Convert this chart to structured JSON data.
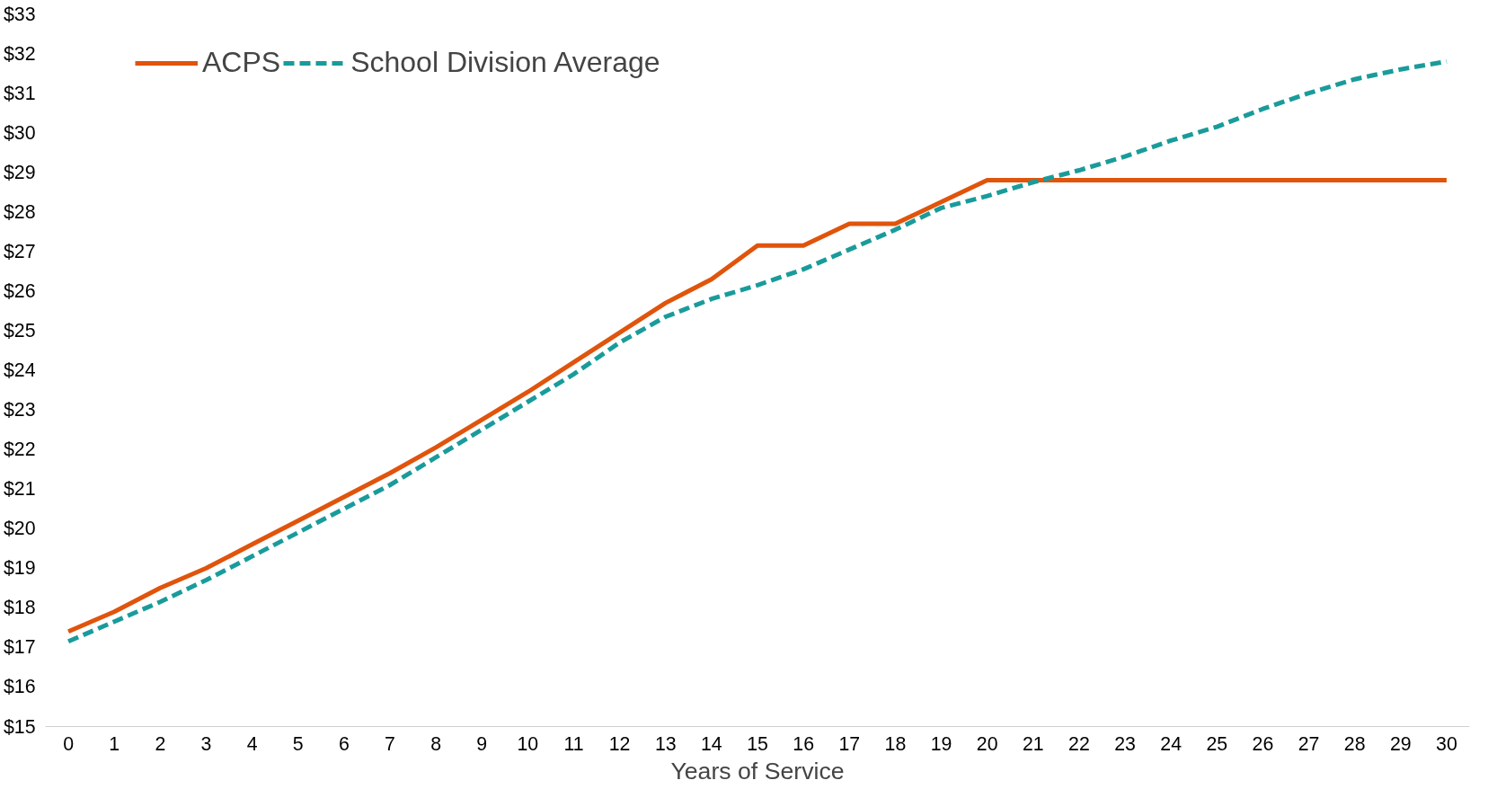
{
  "chart_data": {
    "type": "line",
    "xlabel": "Years of Service",
    "x": [
      0,
      1,
      2,
      3,
      4,
      5,
      6,
      7,
      8,
      9,
      10,
      11,
      12,
      13,
      14,
      15,
      16,
      17,
      18,
      19,
      20,
      21,
      22,
      23,
      24,
      25,
      26,
      27,
      28,
      29,
      30
    ],
    "xlim": [
      -0.5,
      30.5
    ],
    "xticks": [
      0,
      1,
      2,
      3,
      4,
      5,
      6,
      7,
      8,
      9,
      10,
      11,
      12,
      13,
      14,
      15,
      16,
      17,
      18,
      19,
      20,
      21,
      22,
      23,
      24,
      25,
      26,
      27,
      28,
      29,
      30
    ],
    "ylim": [
      15,
      33
    ],
    "yticks": [
      {
        "value": 15,
        "label": "$15"
      },
      {
        "value": 16,
        "label": "$16"
      },
      {
        "value": 17,
        "label": "$17"
      },
      {
        "value": 18,
        "label": "$18"
      },
      {
        "value": 19,
        "label": "$19"
      },
      {
        "value": 20,
        "label": "$20"
      },
      {
        "value": 21,
        "label": "$21"
      },
      {
        "value": 22,
        "label": "$22"
      },
      {
        "value": 23,
        "label": "$23"
      },
      {
        "value": 24,
        "label": "$24"
      },
      {
        "value": 25,
        "label": "$25"
      },
      {
        "value": 26,
        "label": "$26"
      },
      {
        "value": 27,
        "label": "$27"
      },
      {
        "value": 28,
        "label": "$28"
      },
      {
        "value": 29,
        "label": "$29"
      },
      {
        "value": 30,
        "label": "$30"
      },
      {
        "value": 31,
        "label": "$31"
      },
      {
        "value": 32,
        "label": "$32"
      },
      {
        "value": 33,
        "label": "$33"
      }
    ],
    "grid": false,
    "legend": "top left",
    "marker": "none",
    "series": [
      {
        "name": "ACPS",
        "color": "#e0540c",
        "line_style": "solid",
        "values": [
          17.4,
          17.9,
          18.5,
          19.0,
          19.6,
          20.2,
          20.8,
          21.4,
          22.05,
          22.75,
          23.45,
          24.2,
          24.95,
          25.7,
          26.3,
          27.15,
          27.15,
          27.7,
          27.7,
          28.25,
          28.8,
          28.8,
          28.8,
          28.8,
          28.8,
          28.8,
          28.8,
          28.8,
          28.8,
          28.8,
          28.8
        ]
      },
      {
        "name": "School Division Average",
        "color": "#1a9b9b",
        "line_style": "dashed",
        "values": [
          17.15,
          17.65,
          18.15,
          18.7,
          19.3,
          19.9,
          20.5,
          21.1,
          21.8,
          22.5,
          23.2,
          23.9,
          24.7,
          25.35,
          25.8,
          26.15,
          26.55,
          27.05,
          27.55,
          28.1,
          28.4,
          28.75,
          29.05,
          29.4,
          29.8,
          30.15,
          30.6,
          31.0,
          31.35,
          31.6,
          31.8
        ]
      }
    ]
  }
}
